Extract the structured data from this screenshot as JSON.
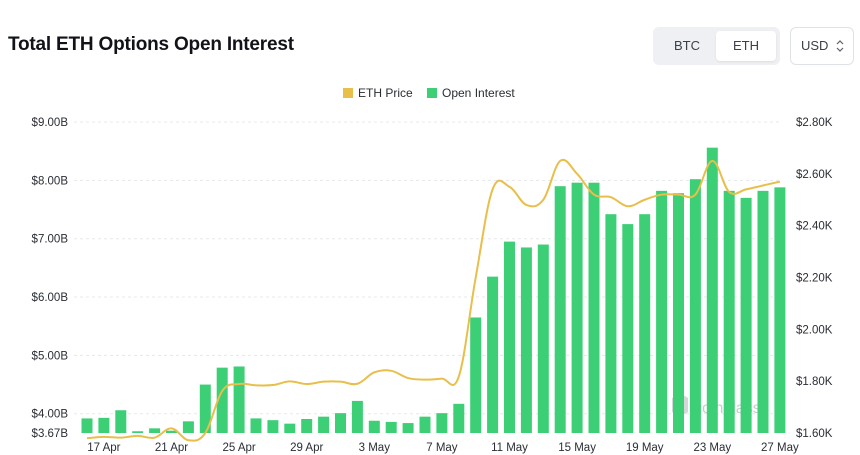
{
  "header": {
    "title": "Total ETH Options Open Interest",
    "asset_tabs": [
      "BTC",
      "ETH"
    ],
    "active_asset": "ETH",
    "currency": "USD"
  },
  "watermark": "coinglass",
  "colors": {
    "bar": "#3ccf76",
    "price_line": "#e8bf4a",
    "grid": "#e6e8eb",
    "watermark": "#c9ccd1"
  },
  "chart_data": {
    "type": "bar",
    "title": "Total ETH Options Open Interest",
    "categories": [
      "16 Apr",
      "17 Apr",
      "18 Apr",
      "19 Apr",
      "20 Apr",
      "21 Apr",
      "22 Apr",
      "23 Apr",
      "24 Apr",
      "25 Apr",
      "26 Apr",
      "27 Apr",
      "28 Apr",
      "29 Apr",
      "30 Apr",
      "1 May",
      "2 May",
      "3 May",
      "4 May",
      "5 May",
      "6 May",
      "7 May",
      "8 May",
      "9 May",
      "10 May",
      "11 May",
      "12 May",
      "13 May",
      "14 May",
      "15 May",
      "16 May",
      "17 May",
      "18 May",
      "19 May",
      "20 May",
      "21 May",
      "22 May",
      "23 May",
      "24 May",
      "25 May",
      "26 May",
      "27 May"
    ],
    "x_tick_labels": [
      "17 Apr",
      "21 Apr",
      "25 Apr",
      "29 Apr",
      "3 May",
      "7 May",
      "11 May",
      "15 May",
      "19 May",
      "23 May",
      "27 May"
    ],
    "series": [
      {
        "name": "Open Interest",
        "axis": "left",
        "values": [
          3.92,
          3.93,
          4.06,
          3.7,
          3.75,
          3.71,
          3.87,
          4.5,
          4.79,
          4.81,
          3.92,
          3.89,
          3.83,
          3.91,
          3.95,
          4.01,
          4.22,
          3.88,
          3.86,
          3.84,
          3.95,
          4.01,
          4.17,
          5.65,
          6.35,
          6.95,
          6.85,
          6.9,
          7.9,
          7.96,
          7.96,
          7.42,
          7.25,
          7.42,
          7.82,
          7.78,
          8.02,
          8.56,
          7.82,
          7.7,
          7.82,
          7.88
        ]
      },
      {
        "name": "ETH Price",
        "axis": "right",
        "type": "line",
        "values": [
          1580,
          1585,
          1582,
          1589,
          1582,
          1618,
          1572,
          1600,
          1762,
          1789,
          1784,
          1785,
          1799,
          1789,
          1798,
          1798,
          1790,
          1834,
          1840,
          1812,
          1806,
          1810,
          1818,
          2200,
          2540,
          2550,
          2480,
          2500,
          2650,
          2600,
          2520,
          2510,
          2475,
          2500,
          2520,
          2520,
          2520,
          2650,
          2530,
          2540,
          2555,
          2570
        ]
      }
    ],
    "y_left": {
      "label": "",
      "ticks": [
        "$9.00B",
        "$8.00B",
        "$7.00B",
        "$6.00B",
        "$5.00B",
        "$4.00B",
        "$3.67B"
      ],
      "ylim": [
        3.67,
        9.0
      ]
    },
    "y_right": {
      "label": "",
      "ticks": [
        "$2.80K",
        "$2.60K",
        "$2.40K",
        "$2.20K",
        "$2.00K",
        "$1.80K",
        "$1.60K"
      ],
      "ylim": [
        1600,
        2800
      ]
    },
    "grid": true,
    "legend": {
      "position": "top-center",
      "items": [
        "ETH Price",
        "Open Interest"
      ]
    }
  }
}
